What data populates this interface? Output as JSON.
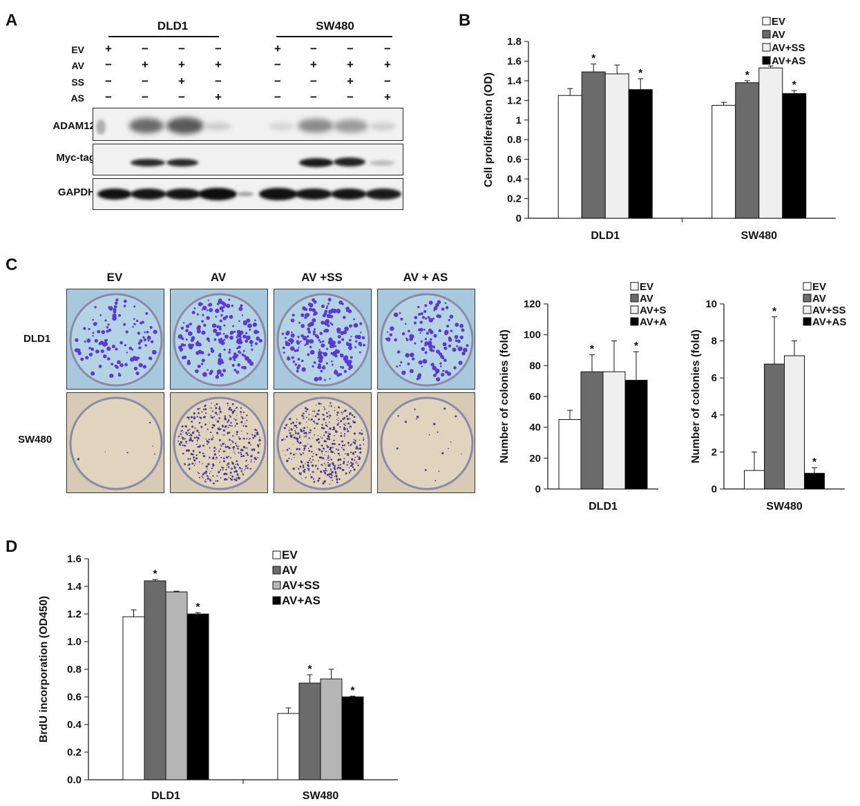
{
  "panels": {
    "a": "A",
    "b": "B",
    "c": "C",
    "d": "D"
  },
  "western": {
    "groups": [
      "DLD1",
      "SW480"
    ],
    "rows": [
      {
        "label": "EV",
        "signs": [
          "+",
          "−",
          "−",
          "−",
          "+",
          "−",
          "−",
          "−"
        ]
      },
      {
        "label": "AV",
        "signs": [
          "−",
          "+",
          "+",
          "+",
          "−",
          "+",
          "+",
          "+"
        ]
      },
      {
        "label": "SS",
        "signs": [
          "−",
          "−",
          "+",
          "−",
          "−",
          "−",
          "+",
          "−"
        ]
      },
      {
        "label": "AS",
        "signs": [
          "−",
          "−",
          "−",
          "+",
          "−",
          "−",
          "−",
          "+"
        ]
      }
    ],
    "blots": [
      "ADAM12",
      "Myc-tag",
      "GAPDH"
    ]
  },
  "colony_images": {
    "columns": [
      "EV",
      "AV",
      "AV +SS",
      "AV + AS"
    ],
    "rows": [
      "DLD1",
      "SW480"
    ]
  },
  "colors": {
    "EV": "#ffffff",
    "AV": "#6b6b6b",
    "AV+SS": "#efefef",
    "AV+AS": "#000000",
    "D_AV+SS": "#b5b5b5"
  },
  "chart_data": [
    {
      "id": "B",
      "type": "bar",
      "categories": [
        "DLD1",
        "SW480"
      ],
      "ylabel": "Cell proliferation (OD)",
      "ylim": [
        0,
        1.8
      ],
      "yticks": [
        "0",
        "0.2",
        "0.4",
        "0.6",
        "0.8",
        "1",
        "1.2",
        "1.4",
        "1.6",
        "1.8"
      ],
      "legend_position": "top-right",
      "series": [
        {
          "name": "EV",
          "values": [
            1.25,
            1.15
          ],
          "errors": [
            0.07,
            0.03
          ],
          "sig": [
            "",
            ""
          ]
        },
        {
          "name": "AV",
          "values": [
            1.49,
            1.38
          ],
          "errors": [
            0.08,
            0.02
          ],
          "sig": [
            "*",
            "*"
          ]
        },
        {
          "name": "AV+SS",
          "values": [
            1.47,
            1.53
          ],
          "errors": [
            0.09,
            0.02
          ],
          "sig": [
            "",
            ""
          ]
        },
        {
          "name": "AV+AS",
          "values": [
            1.31,
            1.27
          ],
          "errors": [
            0.11,
            0.03
          ],
          "sig": [
            "*",
            "*"
          ]
        }
      ]
    },
    {
      "id": "C1",
      "type": "bar",
      "categories": [
        "DLD1"
      ],
      "ylabel": "Number of colonies (fold)",
      "ylim": [
        0,
        120
      ],
      "yticks": [
        "0",
        "20",
        "40",
        "60",
        "80",
        "100",
        "120"
      ],
      "legend_position": "top",
      "series": [
        {
          "name": "EV",
          "values": [
            45
          ],
          "errors": [
            6
          ],
          "sig": [
            ""
          ]
        },
        {
          "name": "AV",
          "values": [
            76
          ],
          "errors": [
            11
          ],
          "sig": [
            "*"
          ]
        },
        {
          "name": "AV+SS",
          "values": [
            76
          ],
          "errors": [
            20
          ],
          "sig": [
            ""
          ]
        },
        {
          "name": "AV+AS",
          "values": [
            70.5
          ],
          "errors": [
            18.5
          ],
          "sig": [
            "*"
          ]
        }
      ]
    },
    {
      "id": "C2",
      "type": "bar",
      "categories": [
        "SW480"
      ],
      "ylabel": "Number of colonies (fold)",
      "ylim": [
        0,
        10
      ],
      "yticks": [
        "0",
        "2",
        "4",
        "6",
        "8",
        "10"
      ],
      "legend_position": "top",
      "series": [
        {
          "name": "EV",
          "values": [
            1.0
          ],
          "errors": [
            1.0
          ],
          "sig": [
            ""
          ]
        },
        {
          "name": "AV",
          "values": [
            6.75
          ],
          "errors": [
            2.55
          ],
          "sig": [
            "*"
          ]
        },
        {
          "name": "AV+SS",
          "values": [
            7.2
          ],
          "errors": [
            0.8
          ],
          "sig": [
            ""
          ]
        },
        {
          "name": "AV+AS",
          "values": [
            0.85
          ],
          "errors": [
            0.3
          ],
          "sig": [
            "*"
          ]
        }
      ]
    },
    {
      "id": "D",
      "type": "bar",
      "categories": [
        "DLD1",
        "SW480"
      ],
      "ylabel": "BrdU incorporation (OD450)",
      "ylim": [
        0,
        1.6
      ],
      "yticks": [
        "0.0",
        "0.2",
        "0.4",
        "0.6",
        "0.8",
        "1.0",
        "1.2",
        "1.4",
        "1.6"
      ],
      "legend_position": "top-right",
      "series": [
        {
          "name": "EV",
          "values": [
            1.18,
            0.48
          ],
          "errors": [
            0.05,
            0.04
          ],
          "sig": [
            "",
            ""
          ]
        },
        {
          "name": "AV",
          "values": [
            1.44,
            0.7
          ],
          "errors": [
            0.01,
            0.06
          ],
          "sig": [
            "*",
            "*"
          ]
        },
        {
          "name": "AV+SS",
          "values": [
            1.36,
            0.73
          ],
          "errors": [
            0.005,
            0.07
          ],
          "sig": [
            "",
            ""
          ]
        },
        {
          "name": "AV+AS",
          "values": [
            1.2,
            0.6
          ],
          "errors": [
            0.01,
            0.005
          ],
          "sig": [
            "*",
            "*"
          ]
        }
      ]
    }
  ]
}
